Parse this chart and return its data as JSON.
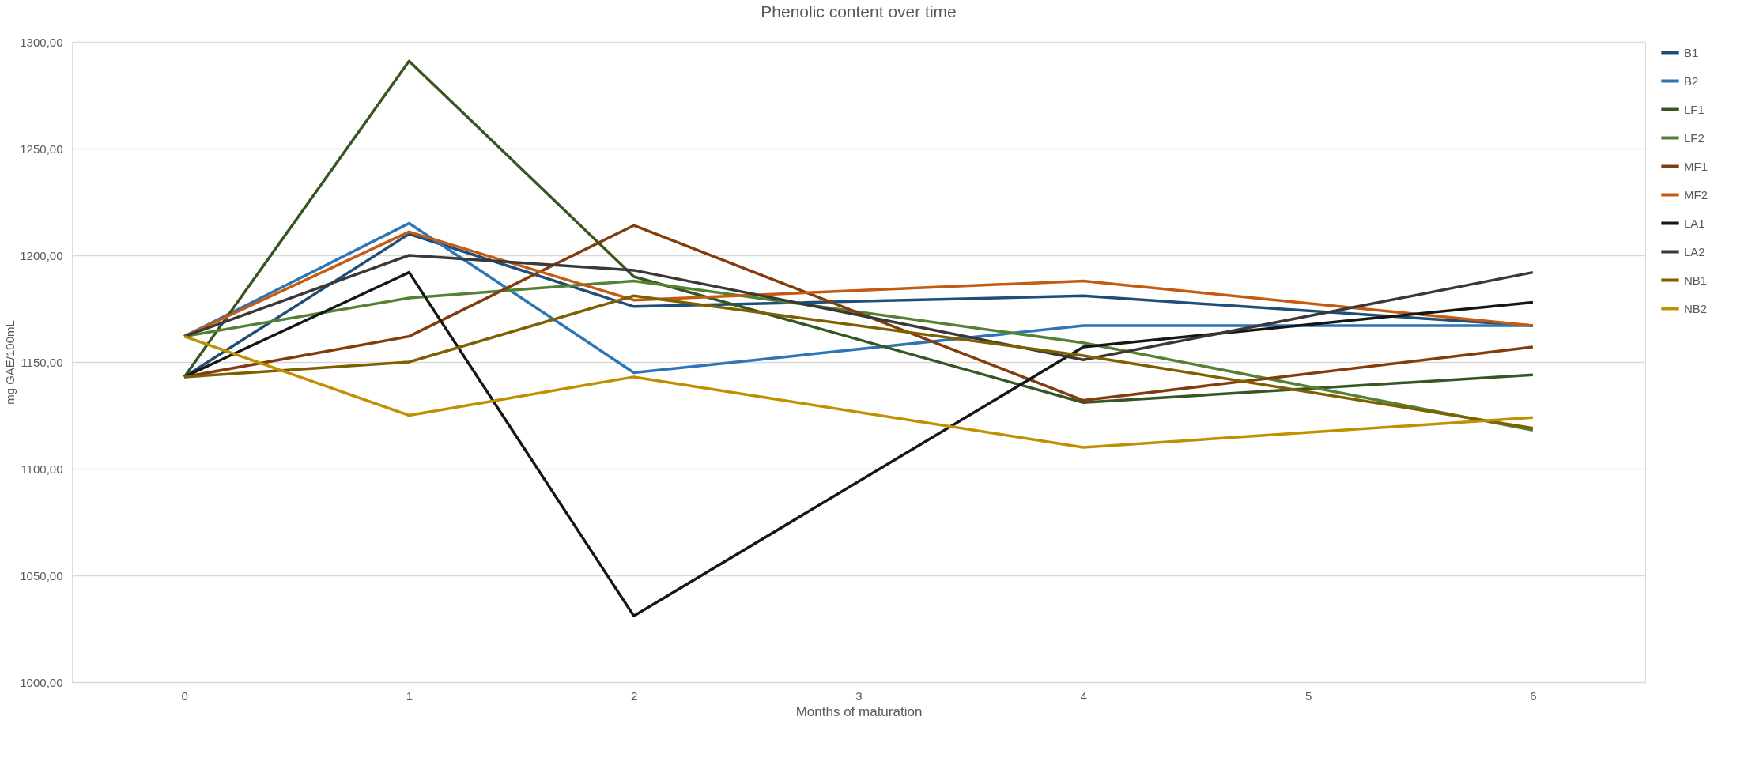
{
  "chart_data": {
    "type": "line",
    "title": "Phenolic content over time",
    "xlabel": "Months of maturation",
    "ylabel": "mg GAE/100mL",
    "x": [
      0,
      1,
      2,
      4,
      6
    ],
    "xlim": [
      -0.5,
      6.5
    ],
    "xticks": [
      0,
      1,
      2,
      3,
      4,
      5,
      6
    ],
    "ylim": [
      1000,
      1300
    ],
    "yticks": [
      {
        "value": 1000,
        "label": "1000,00"
      },
      {
        "value": 1050,
        "label": "1050,00"
      },
      {
        "value": 1100,
        "label": "1100,00"
      },
      {
        "value": 1150,
        "label": "1150,00"
      },
      {
        "value": 1200,
        "label": "1200,00"
      },
      {
        "value": 1250,
        "label": "1250,00"
      },
      {
        "value": 1300,
        "label": "1300,00"
      }
    ],
    "grid": "y",
    "legend": "right",
    "marker": "none",
    "line_style": "solid",
    "series": [
      {
        "name": "B1",
        "color": "#1f4e79",
        "values": [
          1143,
          1210,
          1176,
          1181,
          1167
        ]
      },
      {
        "name": "B2",
        "color": "#2e75b6",
        "values": [
          1162,
          1215,
          1145,
          1167,
          1167
        ]
      },
      {
        "name": "LF1",
        "color": "#375623",
        "values": [
          1143,
          1291,
          1190,
          1131,
          1144
        ]
      },
      {
        "name": "LF2",
        "color": "#548235",
        "values": [
          1162,
          1180,
          1188,
          1159,
          1118
        ]
      },
      {
        "name": "MF1",
        "color": "#843c0c",
        "values": [
          1143,
          1162,
          1214,
          1132,
          1157
        ]
      },
      {
        "name": "MF2",
        "color": "#c55a11",
        "values": [
          1162,
          1211,
          1179,
          1188,
          1167
        ]
      },
      {
        "name": "LA1",
        "color": "#161616",
        "values": [
          1143,
          1192,
          1031,
          1157,
          1178
        ]
      },
      {
        "name": "LA2",
        "color": "#3b3838",
        "values": [
          1162,
          1200,
          1193,
          1151,
          1192
        ]
      },
      {
        "name": "NB1",
        "color": "#7f6000",
        "values": [
          1143,
          1150,
          1181,
          1153,
          1119
        ]
      },
      {
        "name": "NB2",
        "color": "#bf9000",
        "values": [
          1162,
          1125,
          1143,
          1110,
          1124
        ]
      }
    ]
  }
}
